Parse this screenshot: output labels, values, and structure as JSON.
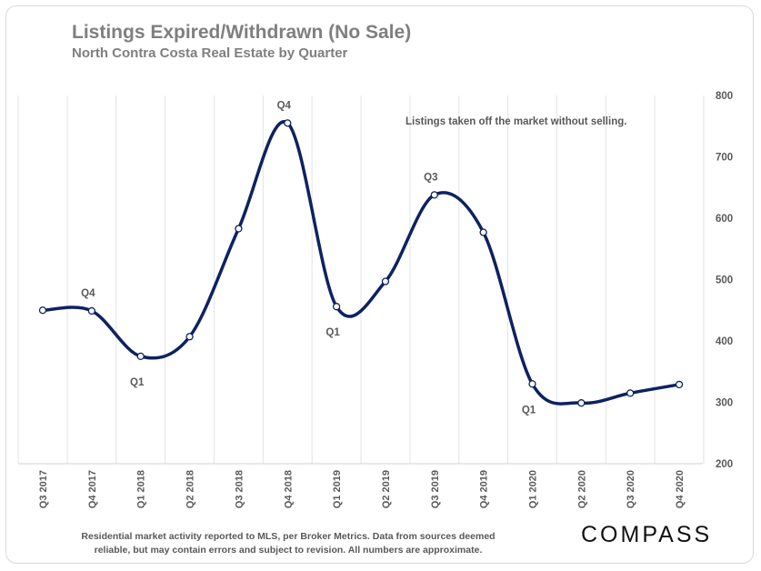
{
  "chart_data": {
    "type": "line",
    "title": "Listings Expired/Withdrawn (No Sale)",
    "subtitle": "North Contra Costa Real Estate by Quarter",
    "categories": [
      "Q3 2017",
      "Q4 2017",
      "Q1 2018",
      "Q2 2018",
      "Q3 2018",
      "Q4 2018",
      "Q1 2019",
      "Q2 2019",
      "Q3 2019",
      "Q4 2019",
      "Q1 2020",
      "Q2 2020",
      "Q3 2020",
      "Q4 2020"
    ],
    "series": [
      {
        "values": [
          450,
          449,
          375,
          407,
          583,
          755,
          456,
          497,
          638,
          577,
          330,
          299,
          315,
          329
        ]
      }
    ],
    "ylim": [
      200,
      800
    ],
    "yticks": [
      200,
      300,
      400,
      500,
      600,
      700,
      800
    ],
    "y_axis_side": "right",
    "grid": "vertical",
    "line_color": "#0d2261",
    "point_labels": [
      {
        "index": 1,
        "text": "Q4",
        "position": "above"
      },
      {
        "index": 2,
        "text": "Q1",
        "position": "below"
      },
      {
        "index": 5,
        "text": "Q4",
        "position": "above"
      },
      {
        "index": 6,
        "text": "Q1",
        "position": "below"
      },
      {
        "index": 8,
        "text": "Q3",
        "position": "above"
      },
      {
        "index": 10,
        "text": "Q1",
        "position": "below"
      }
    ],
    "annotation": "Listings taken off the market without selling."
  },
  "footnote": "Residential market activity reported to MLS, per Broker Metrics. Data from sources deemed reliable, but may contain errors and subject to revision. All numbers are approximate.",
  "logo_text": "COMPASS"
}
